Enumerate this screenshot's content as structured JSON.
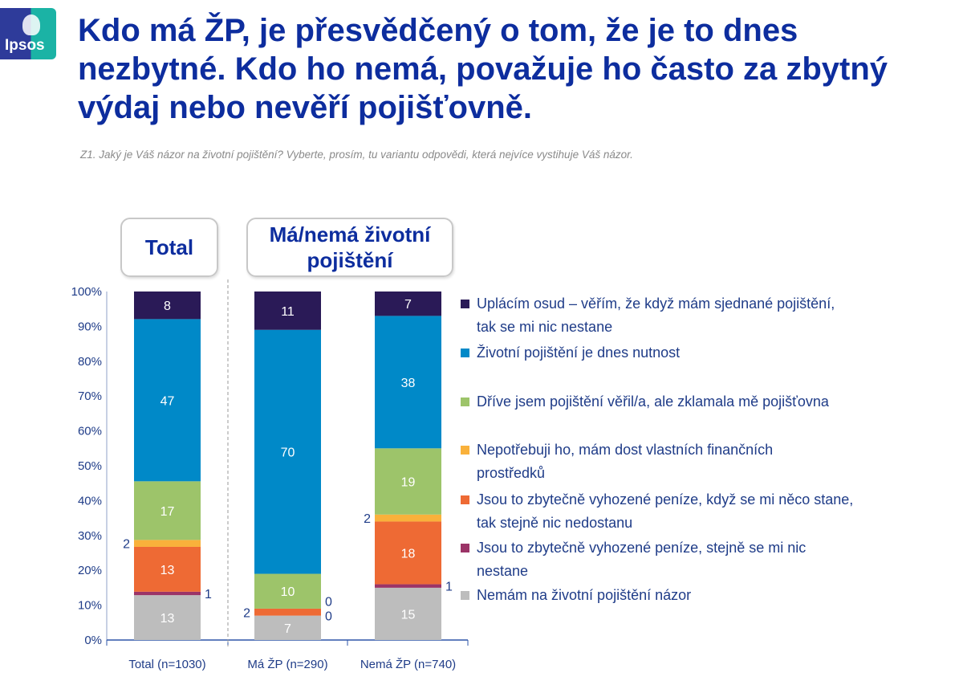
{
  "logo": "Ipsos",
  "title": "Kdo má ŽP, je přesvědčený o tom, že je to dnes nezbytné. Kdo ho nemá, považuje ho často za zbytný výdaj nebo nevěří pojišťovně.",
  "question": "Z1. Jaký je Váš názor na životní pojištění? Vyberte, prosím, tu variantu odpovědi, která nejvíce vystihuje Váš názor.",
  "group_headers": [
    "Total",
    "Má/nemá životní pojištění"
  ],
  "chart_data": {
    "type": "bar",
    "stacked": true,
    "percent": true,
    "categories": [
      "Total (n=1030)",
      "Má ŽP (n=290)",
      "Nemá ŽP (n=740)"
    ],
    "ylim": [
      0,
      100
    ],
    "yticks": [
      "0%",
      "10%",
      "20%",
      "30%",
      "40%",
      "50%",
      "60%",
      "70%",
      "80%",
      "90%",
      "100%"
    ],
    "legend_position": "right",
    "series": [
      {
        "name": "Nemám na životní pojištění názor",
        "color": "#bdbdbd",
        "values": [
          13,
          7,
          15
        ]
      },
      {
        "name": "Jsou to zbytečně vyhozené peníze, stejně se mi nic nestane",
        "color": "#9b3467",
        "values": [
          1,
          0,
          1
        ]
      },
      {
        "name": "Jsou to zbytečně vyhozené peníze, když se mi něco stane, tak stejně nic nedostanu",
        "color": "#ee6a34",
        "values": [
          13,
          2,
          18
        ]
      },
      {
        "name": "Nepotřebuji ho, mám dost vlastních finančních prostředků",
        "color": "#f9b13b",
        "values": [
          2,
          0,
          2
        ]
      },
      {
        "name": "Dříve jsem pojištění věřil/a, ale zklamala mě pojišťovna",
        "color": "#9dc46a",
        "values": [
          17,
          10,
          19
        ]
      },
      {
        "name": "Životní pojištění je dnes nutnost",
        "color": "#0089c8",
        "values": [
          47,
          70,
          38
        ]
      },
      {
        "name": "Uplácím osud – věřím, že když mám sjednané pojištění, tak se mi nic nestane",
        "color": "#2a1a57",
        "values": [
          8,
          11,
          7
        ]
      }
    ]
  }
}
